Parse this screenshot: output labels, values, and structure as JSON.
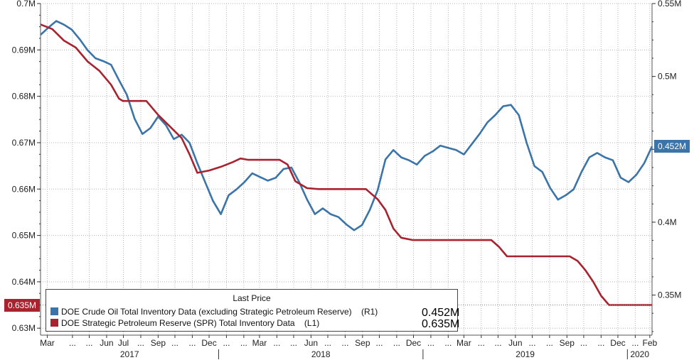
{
  "chart_data": {
    "type": "line",
    "legend_title": "Last Price",
    "legend_position": "bottom-left",
    "x_start": "2017-02-17",
    "x_end": "2020-02-14",
    "x_ticks": [
      {
        "date": "2017-03-01",
        "label": "Mar"
      },
      {
        "date": "2017-04-15",
        "label": "..."
      },
      {
        "date": "2017-05-15",
        "label": "..."
      },
      {
        "date": "2017-06-15",
        "label": "Jun"
      },
      {
        "date": "2017-07-15",
        "label": "Jul"
      },
      {
        "date": "2017-08-15",
        "label": "..."
      },
      {
        "date": "2017-09-15",
        "label": "Sep"
      },
      {
        "date": "2017-10-15",
        "label": "..."
      },
      {
        "date": "2017-11-15",
        "label": "..."
      },
      {
        "date": "2017-12-15",
        "label": "Dec"
      },
      {
        "date": "2018-01-15",
        "label": "..."
      },
      {
        "date": "2018-02-15",
        "label": "..."
      },
      {
        "date": "2018-03-15",
        "label": "Mar"
      },
      {
        "date": "2018-04-15",
        "label": "..."
      },
      {
        "date": "2018-05-15",
        "label": "..."
      },
      {
        "date": "2018-06-15",
        "label": "Jun"
      },
      {
        "date": "2018-07-15",
        "label": "..."
      },
      {
        "date": "2018-08-15",
        "label": "..."
      },
      {
        "date": "2018-09-15",
        "label": "Sep"
      },
      {
        "date": "2018-10-15",
        "label": "..."
      },
      {
        "date": "2018-11-15",
        "label": "..."
      },
      {
        "date": "2018-12-15",
        "label": "Dec"
      },
      {
        "date": "2019-01-15",
        "label": "..."
      },
      {
        "date": "2019-02-15",
        "label": "..."
      },
      {
        "date": "2019-03-15",
        "label": "Mar"
      },
      {
        "date": "2019-04-15",
        "label": "..."
      },
      {
        "date": "2019-05-15",
        "label": "..."
      },
      {
        "date": "2019-06-15",
        "label": "Jun"
      },
      {
        "date": "2019-07-15",
        "label": "..."
      },
      {
        "date": "2019-08-15",
        "label": "..."
      },
      {
        "date": "2019-09-15",
        "label": "Sep"
      },
      {
        "date": "2019-10-15",
        "label": "..."
      },
      {
        "date": "2019-11-15",
        "label": "..."
      },
      {
        "date": "2019-12-15",
        "label": "Dec"
      },
      {
        "date": "2020-01-15",
        "label": "..."
      },
      {
        "date": "2020-02-10",
        "label": "Feb"
      }
    ],
    "year_labels": [
      {
        "label": "2017",
        "start": "2017-02-17",
        "end": "2018-01-01"
      },
      {
        "label": "2018",
        "start": "2018-01-01",
        "end": "2019-01-01"
      },
      {
        "label": "2019",
        "start": "2019-01-01",
        "end": "2020-01-01"
      },
      {
        "label": "2020",
        "start": "2020-01-01",
        "end": "2020-02-14"
      }
    ],
    "left_axis": {
      "ylim": [
        0.6285,
        0.7
      ],
      "ticks": [
        0.63,
        0.64,
        0.65,
        0.66,
        0.67,
        0.68,
        0.69,
        0.7
      ],
      "tick_labels": [
        "0.63M",
        "0.64M",
        "0.65M",
        "0.66M",
        "0.67M",
        "0.68M",
        "0.69M",
        "0.7M"
      ]
    },
    "right_axis": {
      "ylim": [
        0.3225,
        0.55
      ],
      "ticks": [
        0.35,
        0.4,
        0.45,
        0.5,
        0.55
      ],
      "tick_labels": [
        "0.35M",
        "0.4M",
        "0.45M",
        "0.5M",
        "0.55M"
      ]
    },
    "series": [
      {
        "name": "DOE Crude Oil Total Inventory Data (excluding Strategic Petroleum Reserve)",
        "axis_tag": "(R1)",
        "axis": "right",
        "color": "#3a74a8",
        "last": "0.452M",
        "points": [
          [
            "2017-02-17",
            0.5285
          ],
          [
            "2017-03-03",
            0.5335
          ],
          [
            "2017-03-17",
            0.538
          ],
          [
            "2017-03-31",
            0.5355
          ],
          [
            "2017-04-14",
            0.532
          ],
          [
            "2017-04-28",
            0.5255
          ],
          [
            "2017-05-12",
            0.518
          ],
          [
            "2017-05-26",
            0.5125
          ],
          [
            "2017-06-09",
            0.5105
          ],
          [
            "2017-06-23",
            0.508
          ],
          [
            "2017-07-07",
            0.4975
          ],
          [
            "2017-07-21",
            0.4875
          ],
          [
            "2017-08-04",
            0.471
          ],
          [
            "2017-08-18",
            0.4605
          ],
          [
            "2017-09-01",
            0.4645
          ],
          [
            "2017-09-15",
            0.4725
          ],
          [
            "2017-09-29",
            0.4665
          ],
          [
            "2017-10-13",
            0.457
          ],
          [
            "2017-10-27",
            0.46
          ],
          [
            "2017-11-10",
            0.4545
          ],
          [
            "2017-11-24",
            0.4405
          ],
          [
            "2017-12-08",
            0.4275
          ],
          [
            "2017-12-22",
            0.4145
          ],
          [
            "2018-01-05",
            0.4055
          ],
          [
            "2018-01-19",
            0.4185
          ],
          [
            "2018-02-02",
            0.4225
          ],
          [
            "2018-02-16",
            0.4275
          ],
          [
            "2018-03-02",
            0.4335
          ],
          [
            "2018-03-16",
            0.431
          ],
          [
            "2018-03-30",
            0.4285
          ],
          [
            "2018-04-13",
            0.4305
          ],
          [
            "2018-04-27",
            0.4365
          ],
          [
            "2018-05-11",
            0.4375
          ],
          [
            "2018-05-25",
            0.4275
          ],
          [
            "2018-06-08",
            0.4155
          ],
          [
            "2018-06-22",
            0.4055
          ],
          [
            "2018-07-06",
            0.4095
          ],
          [
            "2018-07-20",
            0.4055
          ],
          [
            "2018-08-03",
            0.4035
          ],
          [
            "2018-08-17",
            0.3985
          ],
          [
            "2018-08-31",
            0.3945
          ],
          [
            "2018-09-14",
            0.398
          ],
          [
            "2018-09-28",
            0.4085
          ],
          [
            "2018-10-12",
            0.422
          ],
          [
            "2018-10-26",
            0.443
          ],
          [
            "2018-11-09",
            0.4495
          ],
          [
            "2018-11-23",
            0.4445
          ],
          [
            "2018-12-07",
            0.4425
          ],
          [
            "2018-12-21",
            0.4395
          ],
          [
            "2019-01-04",
            0.4455
          ],
          [
            "2019-01-18",
            0.4485
          ],
          [
            "2019-02-01",
            0.4525
          ],
          [
            "2019-02-15",
            0.451
          ],
          [
            "2019-03-01",
            0.4495
          ],
          [
            "2019-03-15",
            0.4465
          ],
          [
            "2019-03-29",
            0.4535
          ],
          [
            "2019-04-12",
            0.4605
          ],
          [
            "2019-04-26",
            0.4685
          ],
          [
            "2019-05-10",
            0.4735
          ],
          [
            "2019-05-24",
            0.4795
          ],
          [
            "2019-06-07",
            0.4805
          ],
          [
            "2019-06-21",
            0.4735
          ],
          [
            "2019-07-05",
            0.4545
          ],
          [
            "2019-07-19",
            0.4385
          ],
          [
            "2019-08-02",
            0.4345
          ],
          [
            "2019-08-16",
            0.4235
          ],
          [
            "2019-08-30",
            0.4155
          ],
          [
            "2019-09-13",
            0.4185
          ],
          [
            "2019-09-27",
            0.4225
          ],
          [
            "2019-10-11",
            0.4345
          ],
          [
            "2019-10-25",
            0.4445
          ],
          [
            "2019-11-08",
            0.4475
          ],
          [
            "2019-11-22",
            0.4445
          ],
          [
            "2019-12-06",
            0.4425
          ],
          [
            "2019-12-20",
            0.4305
          ],
          [
            "2020-01-03",
            0.4275
          ],
          [
            "2020-01-17",
            0.4325
          ],
          [
            "2020-01-31",
            0.4405
          ],
          [
            "2020-02-14",
            0.452
          ]
        ]
      },
      {
        "name": "DOE Strategic Petroleum Reserve (SPR) Total Inventory Data",
        "axis_tag": "(L1)",
        "axis": "left",
        "color": "#a8232f",
        "last": "0.635M",
        "points": [
          [
            "2017-02-17",
            0.6955
          ],
          [
            "2017-03-10",
            0.6945
          ],
          [
            "2017-03-31",
            0.692
          ],
          [
            "2017-04-21",
            0.6905
          ],
          [
            "2017-05-12",
            0.6875
          ],
          [
            "2017-06-02",
            0.6855
          ],
          [
            "2017-06-23",
            0.6825
          ],
          [
            "2017-07-07",
            0.6795
          ],
          [
            "2017-07-14",
            0.679
          ],
          [
            "2017-08-04",
            0.679
          ],
          [
            "2017-08-25",
            0.679
          ],
          [
            "2017-09-15",
            0.676
          ],
          [
            "2017-10-06",
            0.6735
          ],
          [
            "2017-10-27",
            0.671
          ],
          [
            "2017-11-10",
            0.6675
          ],
          [
            "2017-11-24",
            0.6635
          ],
          [
            "2017-12-15",
            0.664
          ],
          [
            "2018-01-05",
            0.6648
          ],
          [
            "2018-01-26",
            0.6658
          ],
          [
            "2018-02-09",
            0.6666
          ],
          [
            "2018-02-23",
            0.6663
          ],
          [
            "2018-03-09",
            0.6663
          ],
          [
            "2018-03-30",
            0.6663
          ],
          [
            "2018-04-20",
            0.6663
          ],
          [
            "2018-05-04",
            0.6653
          ],
          [
            "2018-05-18",
            0.6617
          ],
          [
            "2018-06-08",
            0.6602
          ],
          [
            "2018-06-29",
            0.66
          ],
          [
            "2018-07-20",
            0.66
          ],
          [
            "2018-08-10",
            0.66
          ],
          [
            "2018-08-31",
            0.66
          ],
          [
            "2018-09-21",
            0.66
          ],
          [
            "2018-10-12",
            0.6578
          ],
          [
            "2018-10-26",
            0.6555
          ],
          [
            "2018-11-09",
            0.6515
          ],
          [
            "2018-11-23",
            0.6495
          ],
          [
            "2018-12-14",
            0.649
          ],
          [
            "2019-01-11",
            0.649
          ],
          [
            "2019-02-08",
            0.649
          ],
          [
            "2019-03-08",
            0.649
          ],
          [
            "2019-04-05",
            0.649
          ],
          [
            "2019-05-03",
            0.649
          ],
          [
            "2019-05-17",
            0.6475
          ],
          [
            "2019-05-31",
            0.6455
          ],
          [
            "2019-06-28",
            0.6455
          ],
          [
            "2019-07-26",
            0.6455
          ],
          [
            "2019-08-23",
            0.6455
          ],
          [
            "2019-09-20",
            0.6455
          ],
          [
            "2019-10-04",
            0.6445
          ],
          [
            "2019-10-18",
            0.6425
          ],
          [
            "2019-11-01",
            0.64
          ],
          [
            "2019-11-15",
            0.637
          ],
          [
            "2019-11-29",
            0.635
          ],
          [
            "2019-12-27",
            0.635
          ],
          [
            "2020-01-24",
            0.635
          ],
          [
            "2020-02-14",
            0.635
          ]
        ]
      }
    ]
  }
}
